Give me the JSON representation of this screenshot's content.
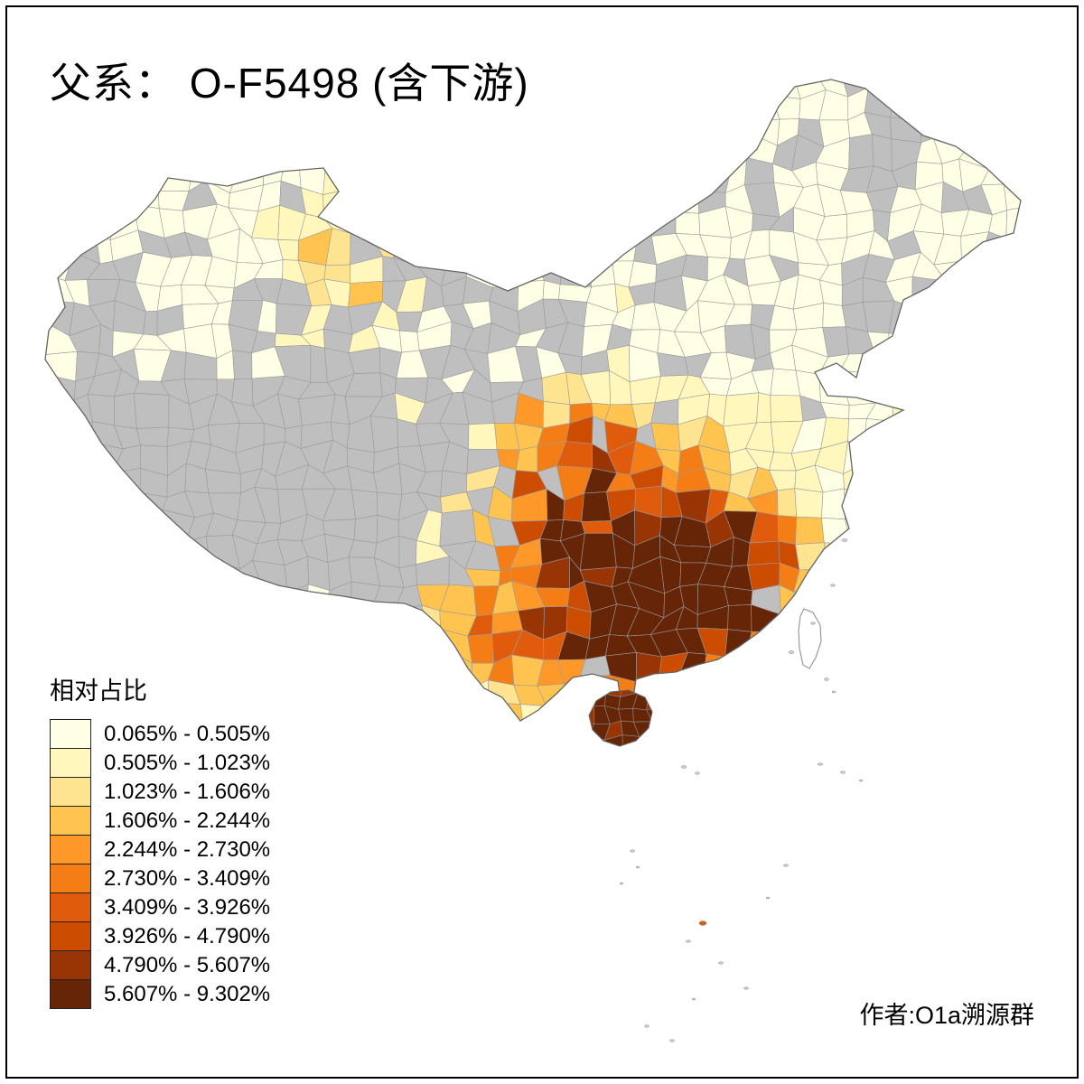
{
  "title": "父系： O-F5498 (含下游)",
  "legend": {
    "title": "相对占比",
    "breaks": [
      0.065,
      0.505,
      1.023,
      1.606,
      2.244,
      2.73,
      3.409,
      3.926,
      4.79,
      5.607,
      9.302
    ],
    "items": [
      {
        "label": "0.065% - 0.505%",
        "color": "#FFFFE5"
      },
      {
        "label": "0.505% - 1.023%",
        "color": "#FFF7BC"
      },
      {
        "label": "1.023% - 1.606%",
        "color": "#FEE391"
      },
      {
        "label": "1.606% - 2.244%",
        "color": "#FEC44F"
      },
      {
        "label": "2.244% - 2.730%",
        "color": "#FE9929"
      },
      {
        "label": "2.730% - 3.409%",
        "color": "#F57D15"
      },
      {
        "label": "3.409% - 3.926%",
        "color": "#E05C0C"
      },
      {
        "label": "3.926% - 4.790%",
        "color": "#CC4C02"
      },
      {
        "label": "4.790% - 5.607%",
        "color": "#993404"
      },
      {
        "label": "5.607% - 9.302%",
        "color": "#662506"
      }
    ],
    "no_data_color": "#BFBFBF"
  },
  "attribution": "作者:O1a溯源群",
  "map": {
    "region": "China",
    "type": "choropleth",
    "value_range": "0.065% - 9.302%"
  }
}
